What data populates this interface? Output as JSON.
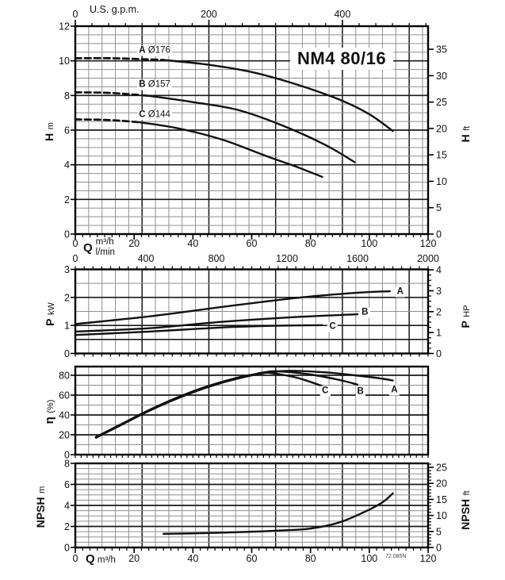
{
  "page": {
    "title": "NM4 80/16",
    "drawing_code": "72.085N"
  },
  "axes_labels": {
    "top_flow_unit": "U.S. g.p.m.",
    "flow_symbol": "Q",
    "flow_unit_m3h": "m³/h",
    "flow_unit_lmin": "l/min",
    "head_symbol": "H",
    "head_unit_left": "m",
    "head_unit_right": "ft",
    "power_symbol": "P",
    "power_unit_left": "kW",
    "power_unit_right": "HP",
    "eff_symbol": "η",
    "eff_unit": "(%)",
    "npsh_symbol": "NPSH",
    "npsh_unit_left": "m",
    "npsh_unit_right": "ft"
  },
  "colors": {
    "background": "#ffffff",
    "curve": "#111111",
    "grid_minor": "#8f8f8f",
    "grid_major": "#1a1a1a",
    "border": "#000000",
    "text": "#111111"
  },
  "chart_data": [
    {
      "id": "head",
      "type": "line",
      "title": "NM4 80/16",
      "xlabel": "Q",
      "x_units": {
        "m3h": {
          "ticks": [
            0,
            20,
            40,
            60,
            80,
            100,
            120
          ],
          "max": 120
        },
        "lmin": {
          "ticks": [
            0,
            400,
            800,
            1200,
            1600,
            2000
          ],
          "max": 2000
        },
        "gpm": {
          "label": "U.S. g.p.m.",
          "ticks": [
            0,
            200,
            400
          ],
          "max": 528
        }
      },
      "y_left": {
        "label": "H",
        "unit": "m",
        "ticks": [
          0,
          2,
          4,
          6,
          8,
          10,
          12
        ],
        "min": 0,
        "max": 12
      },
      "y_right": {
        "label": "H",
        "unit": "ft",
        "ticks": [
          0,
          5,
          10,
          15,
          20,
          25,
          30,
          35
        ]
      },
      "grid": {
        "on": true,
        "h_minor_step_m": 0.5,
        "h_major_step_m": 2,
        "v_minor_step_gpm": 20,
        "v_major_step_gpm": 100
      },
      "series": [
        {
          "name": "A",
          "impeller": "Ø176",
          "dashed": [
            [
              0,
              10.15
            ],
            [
              12,
              10.15
            ],
            [
              22,
              10.1
            ],
            [
              30,
              10.05
            ]
          ],
          "points": [
            [
              30,
              10.05
            ],
            [
              45,
              9.78
            ],
            [
              60,
              9.35
            ],
            [
              75,
              8.65
            ],
            [
              90,
              7.75
            ],
            [
              100,
              6.92
            ],
            [
              108,
              5.95
            ]
          ],
          "label_pos": [
            27,
            10.6
          ]
        },
        {
          "name": "B",
          "impeller": "Ø157",
          "dashed": [
            [
              0,
              8.18
            ],
            [
              10,
              8.16
            ],
            [
              18,
              8.08
            ],
            [
              25,
              7.98
            ]
          ],
          "points": [
            [
              25,
              7.98
            ],
            [
              40,
              7.62
            ],
            [
              55,
              7.18
            ],
            [
              70,
              6.3
            ],
            [
              85,
              5.15
            ],
            [
              95,
              4.15
            ]
          ],
          "label_pos": [
            27,
            8.62
          ]
        },
        {
          "name": "C",
          "impeller": "Ø144",
          "dashed": [
            [
              0,
              6.62
            ],
            [
              8,
              6.6
            ],
            [
              15,
              6.55
            ],
            [
              22,
              6.45
            ]
          ],
          "points": [
            [
              22,
              6.45
            ],
            [
              35,
              6.1
            ],
            [
              50,
              5.45
            ],
            [
              65,
              4.5
            ],
            [
              75,
              3.9
            ],
            [
              84,
              3.3
            ]
          ],
          "label_pos": [
            27,
            6.85
          ]
        }
      ]
    },
    {
      "id": "power",
      "type": "line",
      "y_left": {
        "label": "P",
        "unit": "kW",
        "ticks": [
          0,
          1,
          2,
          3
        ],
        "min": 0,
        "max": 3
      },
      "y_right": {
        "label": "P",
        "unit": "HP",
        "ticks": [
          0,
          1,
          2,
          3,
          4
        ]
      },
      "grid": {
        "on": true,
        "h_minor_step_kw": 0.5,
        "h_major_lines_kw": [
          0.5,
          1,
          2
        ]
      },
      "series": [
        {
          "name": "A",
          "points": [
            [
              0,
              1.05
            ],
            [
              25,
              1.32
            ],
            [
              50,
              1.66
            ],
            [
              75,
              1.98
            ],
            [
              95,
              2.16
            ],
            [
              107,
              2.22
            ]
          ],
          "label_pos": [
            110.5,
            2.2
          ]
        },
        {
          "name": "B",
          "points": [
            [
              0,
              0.78
            ],
            [
              25,
              0.9
            ],
            [
              50,
              1.13
            ],
            [
              75,
              1.3
            ],
            [
              96,
              1.4
            ]
          ],
          "label_pos": [
            98.5,
            1.45
          ]
        },
        {
          "name": "C",
          "points": [
            [
              0,
              0.66
            ],
            [
              25,
              0.78
            ],
            [
              50,
              0.93
            ],
            [
              68,
              0.99
            ],
            [
              84,
              1.01
            ]
          ],
          "label_pos": [
            87.5,
            0.95
          ]
        }
      ]
    },
    {
      "id": "efficiency",
      "type": "line",
      "y_left": {
        "label": "η",
        "unit": "(%)",
        "ticks": [
          0,
          20,
          40,
          60,
          80
        ],
        "min": 0,
        "max": 89
      },
      "grid": {
        "on": true,
        "h_minor_step_pct": 10,
        "h_major_step_pct": 20
      },
      "series": [
        {
          "name": "A",
          "points": [
            [
              7,
              17
            ],
            [
              15,
              29
            ],
            [
              25,
              44
            ],
            [
              35,
              57
            ],
            [
              45,
              68
            ],
            [
              55,
              76.5
            ],
            [
              65,
              82.5
            ],
            [
              73,
              84.5
            ],
            [
              85,
              83
            ],
            [
              95,
              80
            ],
            [
              103,
              77.2
            ],
            [
              108,
              74.8
            ]
          ],
          "label_pos": [
            108.5,
            64.5
          ]
        },
        {
          "name": "B",
          "points": [
            [
              7,
              17.4
            ],
            [
              15,
              29.4
            ],
            [
              25,
              44.4
            ],
            [
              35,
              57.5
            ],
            [
              45,
              68.5
            ],
            [
              55,
              77
            ],
            [
              64,
              82.8
            ],
            [
              69,
              84
            ],
            [
              80,
              80.8
            ],
            [
              90,
              75.2
            ],
            [
              96,
              70.6
            ]
          ],
          "label_pos": [
            97,
            63.5
          ]
        },
        {
          "name": "C",
          "points": [
            [
              7,
              17.8
            ],
            [
              15,
              29.8
            ],
            [
              25,
              44.8
            ],
            [
              35,
              58
            ],
            [
              45,
              69
            ],
            [
              55,
              77.5
            ],
            [
              61,
              81
            ],
            [
              65,
              82.8
            ],
            [
              75,
              77.8
            ],
            [
              84,
              69.2
            ]
          ],
          "label_pos": [
            85,
            64
          ]
        }
      ]
    },
    {
      "id": "npsh",
      "type": "line",
      "xlabel": "Q",
      "x_units": {
        "m3h": {
          "ticks": [
            0,
            20,
            40,
            60,
            80,
            100,
            120
          ],
          "max": 120
        }
      },
      "y_left": {
        "label": "NPSH",
        "unit": "m",
        "ticks": [
          0,
          2,
          4,
          6,
          8
        ],
        "min": 0,
        "max": 8
      },
      "y_right": {
        "label": "NPSH",
        "unit": "ft",
        "ticks": [
          0,
          5,
          10,
          15,
          20,
          25
        ]
      },
      "grid": {
        "on": true,
        "h_minor_step_m": 0.5,
        "h_major_step_m": 2
      },
      "series": [
        {
          "name": "NPSH",
          "points": [
            [
              30,
              1.3
            ],
            [
              45,
              1.37
            ],
            [
              60,
              1.5
            ],
            [
              70,
              1.62
            ],
            [
              80,
              1.8
            ],
            [
              90,
              2.4
            ],
            [
              100,
              3.6
            ],
            [
              105,
              4.4
            ],
            [
              108,
              5.15
            ]
          ]
        }
      ]
    }
  ]
}
